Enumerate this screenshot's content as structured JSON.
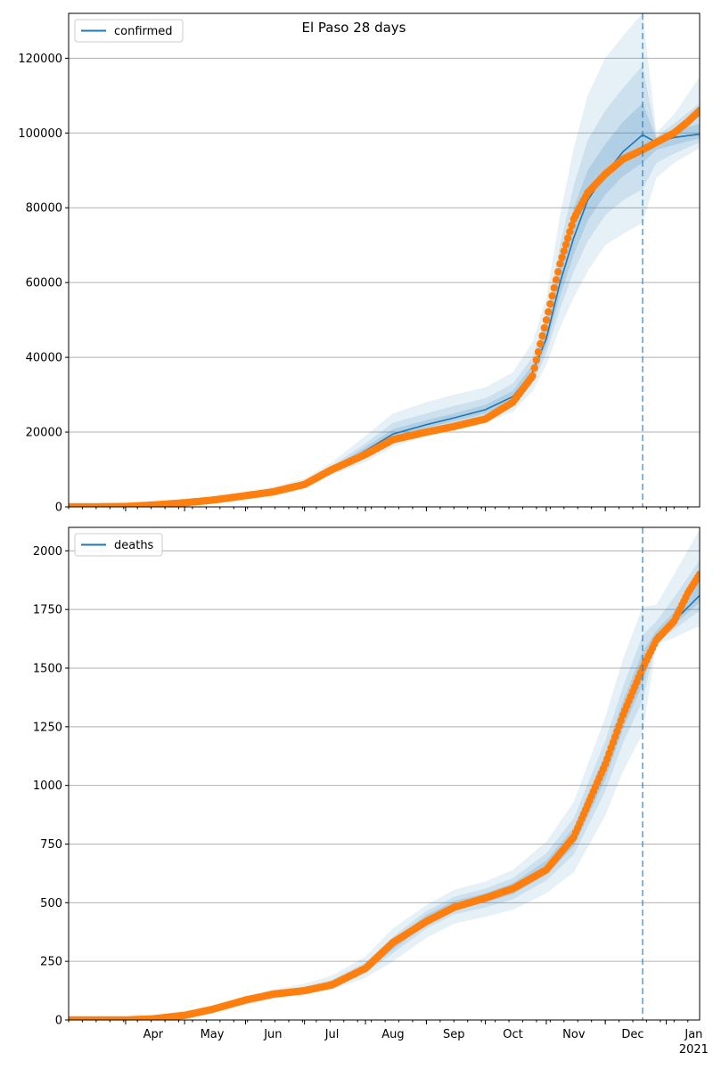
{
  "figure": {
    "title": "El Paso 28 days"
  },
  "chart_data": [
    {
      "type": "line",
      "name": "confirmed-panel",
      "legend": [
        "confirmed"
      ],
      "legend_position": "top-left",
      "grid": "horizontal",
      "x_ticks": [
        "Apr",
        "May",
        "Jun",
        "Jul",
        "Aug",
        "Sep",
        "Oct",
        "Nov",
        "Dec",
        "Jan"
      ],
      "x_year_label": "2021",
      "xlim": [
        "2020-03-03",
        "2021-01-18"
      ],
      "ylim": [
        0,
        132000
      ],
      "y_ticks": [
        0,
        20000,
        40000,
        60000,
        80000,
        100000,
        120000
      ],
      "forecast_start": "2020-12-20",
      "colors": {
        "model_line": "#1f77b4",
        "band": "#1f77b4",
        "observed": "#ff7f0e",
        "grid": "#b0b0b0"
      },
      "series": [
        {
          "name": "confirmed",
          "kind": "model-median",
          "x": [
            "2020-03-03",
            "2020-04-01",
            "2020-05-01",
            "2020-06-01",
            "2020-07-01",
            "2020-07-15",
            "2020-08-01",
            "2020-08-15",
            "2020-09-01",
            "2020-09-15",
            "2020-10-01",
            "2020-10-15",
            "2020-10-25",
            "2020-11-01",
            "2020-11-08",
            "2020-11-15",
            "2020-11-22",
            "2020-12-01",
            "2020-12-10",
            "2020-12-20",
            "2020-12-27",
            "2021-01-05",
            "2021-01-18"
          ],
          "y": [
            0,
            100,
            800,
            3000,
            6500,
            10000,
            15000,
            19500,
            22000,
            23800,
            26000,
            29500,
            36000,
            45000,
            60000,
            72000,
            82000,
            89000,
            95000,
            99500,
            97500,
            98800,
            99700
          ]
        },
        {
          "kind": "band",
          "level": "outer",
          "x": [
            "2020-03-03",
            "2020-04-01",
            "2020-05-01",
            "2020-06-01",
            "2020-07-01",
            "2020-07-15",
            "2020-08-01",
            "2020-08-15",
            "2020-09-01",
            "2020-09-15",
            "2020-10-01",
            "2020-10-15",
            "2020-10-25",
            "2020-11-01",
            "2020-11-08",
            "2020-11-15",
            "2020-11-22",
            "2020-12-01",
            "2020-12-10",
            "2020-12-20",
            "2020-12-27",
            "2021-01-05",
            "2021-01-18"
          ],
          "lower": [
            0,
            50,
            600,
            2500,
            5500,
            8500,
            12000,
            16000,
            19000,
            20500,
            22500,
            25500,
            31000,
            38000,
            48000,
            56000,
            63000,
            70000,
            73000,
            76000,
            88000,
            92000,
            96000
          ],
          "upper": [
            0,
            200,
            1100,
            3600,
            7500,
            12000,
            19000,
            25000,
            28000,
            30000,
            32000,
            36000,
            44000,
            56000,
            78000,
            96000,
            110000,
            120000,
            126000,
            132000,
            100000,
            105000,
            115000
          ]
        },
        {
          "kind": "band",
          "level": "middle",
          "x": [
            "2020-03-03",
            "2020-04-01",
            "2020-05-01",
            "2020-06-01",
            "2020-07-01",
            "2020-07-15",
            "2020-08-01",
            "2020-08-15",
            "2020-09-01",
            "2020-09-15",
            "2020-10-01",
            "2020-10-15",
            "2020-10-25",
            "2020-11-01",
            "2020-11-08",
            "2020-11-15",
            "2020-11-22",
            "2020-12-01",
            "2020-12-10",
            "2020-12-20",
            "2020-12-27",
            "2021-01-05",
            "2021-01-18"
          ],
          "lower": [
            0,
            70,
            650,
            2700,
            5900,
            9200,
            13300,
            17500,
            20300,
            22000,
            24000,
            27200,
            33000,
            41000,
            53000,
            63000,
            71000,
            78000,
            82000,
            85000,
            92000,
            94500,
            97500
          ],
          "upper": [
            0,
            160,
            950,
            3300,
            7000,
            11000,
            17000,
            22500,
            25000,
            27000,
            29000,
            33000,
            40000,
            51000,
            70000,
            86000,
            98000,
            106000,
            112000,
            118000,
            99000,
            102500,
            108000
          ]
        },
        {
          "kind": "band",
          "level": "inner",
          "x": [
            "2020-03-03",
            "2020-04-01",
            "2020-05-01",
            "2020-06-01",
            "2020-07-01",
            "2020-07-15",
            "2020-08-01",
            "2020-08-15",
            "2020-09-01",
            "2020-09-15",
            "2020-10-01",
            "2020-10-15",
            "2020-10-25",
            "2020-11-01",
            "2020-11-08",
            "2020-11-15",
            "2020-11-22",
            "2020-12-01",
            "2020-12-10",
            "2020-12-20",
            "2020-12-27",
            "2021-01-05",
            "2021-01-18"
          ],
          "lower": [
            0,
            85,
            720,
            2850,
            6200,
            9600,
            14200,
            18500,
            21100,
            22900,
            25000,
            28400,
            34500,
            43000,
            56500,
            67500,
            76500,
            83500,
            88500,
            92000,
            95500,
            96800,
            98600
          ],
          "upper": [
            0,
            130,
            880,
            3150,
            6800,
            10500,
            16000,
            20800,
            23200,
            25000,
            27300,
            31000,
            38000,
            48000,
            65000,
            80000,
            90000,
            97000,
            103000,
            108000,
            98500,
            100500,
            102500
          ]
        },
        {
          "name": "observed",
          "kind": "scatter",
          "x": [
            "2020-03-03",
            "2020-03-15",
            "2020-04-01",
            "2020-04-15",
            "2020-05-01",
            "2020-05-15",
            "2020-06-01",
            "2020-06-15",
            "2020-07-01",
            "2020-07-15",
            "2020-08-01",
            "2020-08-15",
            "2020-09-01",
            "2020-09-15",
            "2020-10-01",
            "2020-10-15",
            "2020-10-25",
            "2020-11-01",
            "2020-11-08",
            "2020-11-15",
            "2020-11-22",
            "2020-12-01",
            "2020-12-10",
            "2020-12-20",
            "2020-12-27",
            "2021-01-05",
            "2021-01-12",
            "2021-01-18"
          ],
          "y": [
            0,
            10,
            100,
            500,
            1100,
            1800,
            3000,
            4000,
            6000,
            10000,
            14000,
            18000,
            20000,
            21500,
            23500,
            28000,
            35000,
            50000,
            65000,
            77000,
            84000,
            89000,
            93000,
            95500,
            97500,
            100000,
            103000,
            106000
          ]
        }
      ]
    },
    {
      "type": "line",
      "name": "deaths-panel",
      "legend": [
        "deaths"
      ],
      "legend_position": "top-left",
      "grid": "horizontal",
      "x_ticks": [
        "Apr",
        "May",
        "Jun",
        "Jul",
        "Aug",
        "Sep",
        "Oct",
        "Nov",
        "Dec",
        "Jan"
      ],
      "x_year_label": "2021",
      "xlim": [
        "2020-03-03",
        "2021-01-18"
      ],
      "ylim": [
        0,
        2100
      ],
      "y_ticks": [
        0,
        250,
        500,
        750,
        1000,
        1250,
        1500,
        1750,
        2000
      ],
      "forecast_start": "2020-12-20",
      "colors": {
        "model_line": "#1f77b4",
        "band": "#1f77b4",
        "observed": "#ff7f0e",
        "grid": "#b0b0b0"
      },
      "series": [
        {
          "name": "deaths",
          "kind": "model-median",
          "x": [
            "2020-03-03",
            "2020-04-01",
            "2020-04-15",
            "2020-05-01",
            "2020-05-15",
            "2020-06-01",
            "2020-06-15",
            "2020-07-01",
            "2020-07-15",
            "2020-08-01",
            "2020-08-15",
            "2020-09-01",
            "2020-09-15",
            "2020-10-01",
            "2020-10-15",
            "2020-11-01",
            "2020-11-15",
            "2020-12-01",
            "2020-12-10",
            "2020-12-20",
            "2020-12-27",
            "2021-01-05",
            "2021-01-18"
          ],
          "y": [
            0,
            0,
            5,
            20,
            45,
            80,
            110,
            130,
            155,
            220,
            320,
            430,
            490,
            520,
            560,
            650,
            780,
            1080,
            1300,
            1500,
            1640,
            1700,
            1810
          ]
        },
        {
          "kind": "band",
          "level": "outer",
          "x": [
            "2020-03-03",
            "2020-04-01",
            "2020-04-15",
            "2020-05-01",
            "2020-05-15",
            "2020-06-01",
            "2020-06-15",
            "2020-07-01",
            "2020-07-15",
            "2020-08-01",
            "2020-08-15",
            "2020-09-01",
            "2020-09-15",
            "2020-10-01",
            "2020-10-15",
            "2020-11-01",
            "2020-11-15",
            "2020-12-01",
            "2020-12-10",
            "2020-12-20",
            "2020-12-27",
            "2021-01-05",
            "2021-01-18"
          ],
          "lower": [
            0,
            0,
            3,
            14,
            35,
            65,
            90,
            110,
            130,
            180,
            250,
            350,
            410,
            440,
            470,
            540,
            630,
            870,
            1060,
            1220,
            1600,
            1630,
            1680
          ],
          "upper": [
            0,
            0,
            8,
            28,
            58,
            100,
            130,
            155,
            190,
            270,
            390,
            490,
            555,
            590,
            640,
            760,
            930,
            1290,
            1540,
            1760,
            1770,
            1900,
            2090
          ]
        },
        {
          "kind": "band",
          "level": "middle",
          "x": [
            "2020-03-03",
            "2020-04-01",
            "2020-04-15",
            "2020-05-01",
            "2020-05-15",
            "2020-06-01",
            "2020-06-15",
            "2020-07-01",
            "2020-07-15",
            "2020-08-01",
            "2020-08-15",
            "2020-09-01",
            "2020-09-15",
            "2020-10-01",
            "2020-10-15",
            "2020-11-01",
            "2020-11-15",
            "2020-12-01",
            "2020-12-10",
            "2020-12-20",
            "2020-12-27",
            "2021-01-05",
            "2021-01-18"
          ],
          "lower": [
            0,
            0,
            4,
            16,
            40,
            72,
            100,
            120,
            142,
            200,
            285,
            390,
            450,
            480,
            515,
            595,
            705,
            975,
            1180,
            1360,
            1620,
            1665,
            1745
          ],
          "upper": [
            0,
            0,
            7,
            24,
            52,
            90,
            120,
            142,
            172,
            245,
            355,
            465,
            525,
            560,
            605,
            710,
            860,
            1190,
            1420,
            1640,
            1700,
            1800,
            1960
          ]
        },
        {
          "kind": "band",
          "level": "inner",
          "x": [
            "2020-03-03",
            "2020-04-01",
            "2020-04-15",
            "2020-05-01",
            "2020-05-15",
            "2020-06-01",
            "2020-06-15",
            "2020-07-01",
            "2020-07-15",
            "2020-08-01",
            "2020-08-15",
            "2020-09-01",
            "2020-09-15",
            "2020-10-01",
            "2020-10-15",
            "2020-11-01",
            "2020-11-15",
            "2020-12-01",
            "2020-12-10",
            "2020-12-20",
            "2020-12-27",
            "2021-01-05",
            "2021-01-18"
          ],
          "lower": [
            0,
            0,
            4,
            18,
            42,
            76,
            105,
            125,
            148,
            210,
            300,
            410,
            470,
            500,
            537,
            620,
            740,
            1025,
            1240,
            1430,
            1630,
            1685,
            1780
          ],
          "upper": [
            0,
            0,
            6,
            22,
            48,
            84,
            115,
            136,
            163,
            232,
            338,
            448,
            508,
            540,
            583,
            680,
            820,
            1135,
            1360,
            1570,
            1660,
            1740,
            1880
          ]
        },
        {
          "name": "observed",
          "kind": "scatter",
          "x": [
            "2020-03-03",
            "2020-04-01",
            "2020-04-15",
            "2020-05-01",
            "2020-05-15",
            "2020-06-01",
            "2020-06-15",
            "2020-07-01",
            "2020-07-15",
            "2020-08-01",
            "2020-08-15",
            "2020-09-01",
            "2020-09-15",
            "2020-10-01",
            "2020-10-15",
            "2020-11-01",
            "2020-11-15",
            "2020-12-01",
            "2020-12-10",
            "2020-12-20",
            "2020-12-27",
            "2021-01-05",
            "2021-01-12",
            "2021-01-18"
          ],
          "y": [
            0,
            0,
            5,
            20,
            45,
            85,
            110,
            125,
            150,
            220,
            330,
            420,
            480,
            520,
            560,
            640,
            780,
            1090,
            1300,
            1500,
            1620,
            1700,
            1820,
            1900
          ]
        }
      ]
    }
  ]
}
